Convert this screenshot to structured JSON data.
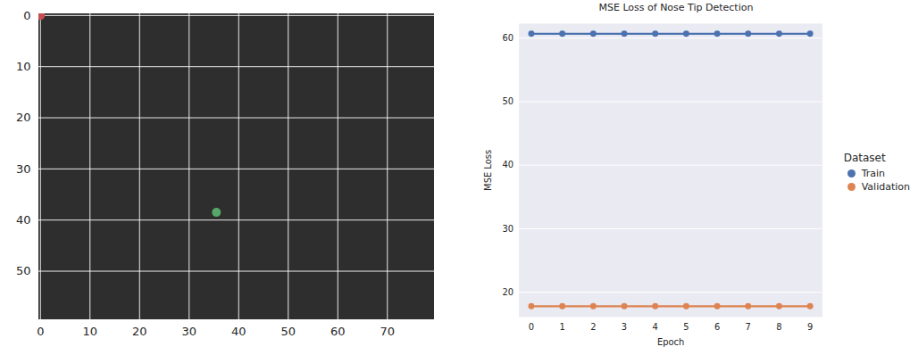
{
  "chart_data": [
    {
      "type": "scatter",
      "points": [
        {
          "x": 0,
          "y": 0,
          "color": "#c44e52"
        },
        {
          "x": 35.5,
          "y": 38.5,
          "color": "#55a868"
        }
      ],
      "xlim": [
        -0.5,
        79.5
      ],
      "xticks": [
        0,
        10,
        20,
        30,
        40,
        50,
        60,
        70
      ],
      "ylim": [
        59.5,
        -0.5
      ],
      "yticks": [
        0,
        10,
        20,
        30,
        40,
        50
      ],
      "grid": true
    },
    {
      "type": "line",
      "title": "MSE Loss of Nose Tip Detection",
      "x_label": "Epoch",
      "y_label": "MSE Loss",
      "x": [
        0,
        1,
        2,
        3,
        4,
        5,
        6,
        7,
        8,
        9
      ],
      "series": [
        {
          "name": "Train",
          "color": "#4c72b0",
          "values": [
            60.7,
            60.7,
            60.7,
            60.7,
            60.7,
            60.7,
            60.7,
            60.7,
            60.7,
            60.7
          ]
        },
        {
          "name": "Validation",
          "color": "#dd8452",
          "values": [
            17.8,
            17.8,
            17.8,
            17.8,
            17.8,
            17.8,
            17.8,
            17.8,
            17.8,
            17.8
          ]
        }
      ],
      "ylim": [
        16.1,
        62.3
      ],
      "yticks": [
        20,
        30,
        40,
        50,
        60
      ],
      "marker": "circle",
      "grid": true,
      "legend_title": "Dataset",
      "legend": "right"
    }
  ]
}
